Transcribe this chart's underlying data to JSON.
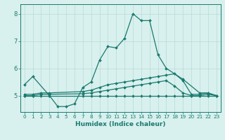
{
  "xlabel": "Humidex (Indice chaleur)",
  "line1_x": [
    0,
    1,
    3,
    4,
    5,
    6,
    7,
    8,
    9,
    10,
    11,
    12,
    13,
    14,
    15,
    16,
    17,
    19,
    21,
    22,
    23
  ],
  "line1_y": [
    5.4,
    5.7,
    5.0,
    4.6,
    4.6,
    4.7,
    5.3,
    5.5,
    6.3,
    6.8,
    6.75,
    7.1,
    8.0,
    7.75,
    7.75,
    6.5,
    6.0,
    5.6,
    5.1,
    5.1,
    5.0
  ],
  "line2_x": [
    0,
    1,
    2,
    3,
    7,
    8,
    9,
    10,
    11,
    12,
    13,
    14,
    15,
    16,
    17,
    18,
    19,
    20,
    21,
    22,
    23
  ],
  "line2_y": [
    5.05,
    5.05,
    5.1,
    5.1,
    5.15,
    5.2,
    5.3,
    5.4,
    5.45,
    5.5,
    5.55,
    5.6,
    5.65,
    5.7,
    5.75,
    5.8,
    5.55,
    5.05,
    5.05,
    5.1,
    5.0
  ],
  "line3_x": [
    0,
    1,
    2,
    3,
    7,
    8,
    9,
    10,
    11,
    12,
    13,
    14,
    15,
    16,
    17,
    18,
    19,
    20,
    21,
    22,
    23
  ],
  "line3_y": [
    5.0,
    5.0,
    5.05,
    5.05,
    5.07,
    5.1,
    5.15,
    5.2,
    5.25,
    5.3,
    5.35,
    5.4,
    5.45,
    5.5,
    5.55,
    5.35,
    5.1,
    5.0,
    5.0,
    5.05,
    5.0
  ],
  "line4_x": [
    0,
    1,
    2,
    3,
    7,
    8,
    9,
    10,
    11,
    12,
    13,
    14,
    15,
    16,
    17,
    18,
    19,
    20,
    21,
    22,
    23
  ],
  "line4_y": [
    5.0,
    5.0,
    5.0,
    5.0,
    5.0,
    5.0,
    5.0,
    5.0,
    5.0,
    5.0,
    5.0,
    5.0,
    5.0,
    5.0,
    5.0,
    5.0,
    5.0,
    5.0,
    5.0,
    5.0,
    5.0
  ],
  "line_color": "#1a7a6e",
  "bg_color": "#d8f0ee",
  "grid_color": "#b8dbd8",
  "ylim": [
    4.4,
    8.35
  ],
  "yticks": [
    5,
    6,
    7,
    8
  ],
  "xlim": [
    -0.5,
    23.5
  ]
}
